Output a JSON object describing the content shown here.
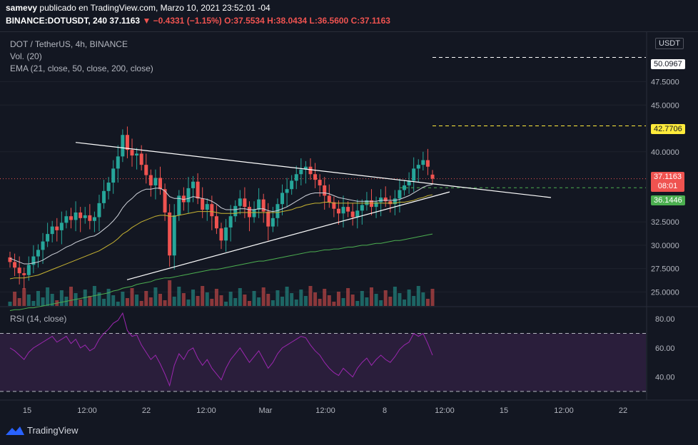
{
  "header": {
    "publisher": "samevy",
    "published_text": "publicado en TradingView.com, Marzo 10, 2021 23:52:01 -04",
    "symbol_line": "BINANCE:DOTUSDT, 240",
    "last": "37.1163",
    "change": "▼ −0.4331 (−1.15%)",
    "open": "O:37.5534",
    "high": "H:38.0434",
    "low": "L:36.5600",
    "close": "C:37.1163"
  },
  "legend": {
    "title": "DOT / TetherUS, 4h, BINANCE",
    "volume": "Vol. (20)",
    "ema": "EMA (21, close, 50, close, 200, close)",
    "rsi": "RSI (14, close)"
  },
  "currency_button": "USDT",
  "price_tags": {
    "line_upper": "50.0967",
    "line_mid": "42.7706",
    "last_price": "37.1163",
    "countdown": "08:01",
    "support": "36.1446"
  },
  "footer": {
    "brand": "TradingView"
  },
  "colors": {
    "up": "#26a69a",
    "down": "#ef5350",
    "ema21": "#d1d4dc",
    "ema50": "#c8b432",
    "ema200": "#4caf50",
    "rsi": "#9c27b0",
    "rsi_band": "#2a1e3b"
  },
  "chart_data": [
    {
      "type": "candlestick",
      "title": "DOT / TetherUS, 4h, BINANCE",
      "y_axis_ticks": [
        "50.0967",
        "47.5000",
        "45.0000",
        "42.7706",
        "40.0000",
        "37.1163",
        "36.1446",
        "32.5000",
        "30.0000",
        "27.5000",
        "25.0000"
      ],
      "ylim": [
        23.5,
        52.5
      ],
      "x_axis_ticks": [
        "15",
        "12:00",
        "22",
        "12:00",
        "Mar",
        "12:00",
        "8",
        "12:00",
        "15",
        "12:00",
        "22"
      ],
      "ohlc_last": {
        "open": 37.5534,
        "high": 38.0434,
        "low": 36.56,
        "close": 37.1163
      },
      "closes": [
        28.2,
        27.6,
        27.0,
        26.8,
        27.9,
        28.8,
        29.5,
        30.4,
        31.2,
        32.0,
        31.6,
        32.4,
        33.1,
        32.7,
        33.5,
        32.9,
        33.2,
        32.6,
        33.0,
        34.5,
        35.8,
        36.7,
        38.2,
        39.5,
        41.8,
        40.2,
        39.6,
        39.8,
        38.6,
        37.5,
        36.4,
        37.2,
        36.0,
        33.5,
        28.9,
        33.2,
        35.3,
        34.6,
        36.1,
        36.8,
        35.0,
        33.8,
        34.4,
        33.1,
        31.8,
        30.5,
        31.9,
        33.1,
        34.2,
        35.0,
        34.1,
        33.0,
        33.8,
        34.9,
        33.6,
        32.0,
        32.9,
        34.4,
        35.6,
        36.0,
        36.9,
        37.6,
        38.1,
        38.4,
        37.6,
        37.0,
        36.4,
        35.3,
        34.6,
        33.9,
        33.4,
        34.1,
        33.6,
        33.0,
        33.7,
        34.3,
        34.8,
        34.1,
        34.6,
        35.1,
        34.7,
        34.4,
        35.0,
        35.9,
        36.4,
        36.9,
        38.2,
        38.6,
        39.1,
        38.4,
        37.1163
      ],
      "series": [
        {
          "name": "EMA 21",
          "values": [
            28.6,
            28.4,
            28.2,
            28.0,
            28.0,
            28.1,
            28.2,
            28.4,
            28.7,
            29.0,
            29.2,
            29.5,
            29.8,
            30.0,
            30.3,
            30.5,
            30.7,
            30.9,
            31.0,
            31.3,
            31.7,
            32.1,
            32.6,
            33.2,
            34.0,
            34.6,
            35.0,
            35.5,
            35.8,
            36.0,
            36.0,
            36.1,
            36.1,
            35.8,
            35.2,
            35.0,
            35.0,
            34.9,
            35.0,
            35.2,
            35.1,
            35.0,
            34.9,
            34.7,
            34.4,
            34.0,
            33.8,
            33.8,
            33.8,
            33.9,
            33.9,
            33.8,
            33.8,
            33.9,
            33.9,
            33.7,
            33.6,
            33.7,
            33.9,
            34.1,
            34.4,
            34.7,
            35.0,
            35.3,
            35.5,
            35.6,
            35.6,
            35.6,
            35.5,
            35.3,
            35.1,
            35.0,
            34.9,
            34.8,
            34.7,
            34.7,
            34.7,
            34.7,
            34.7,
            34.8,
            34.8,
            34.8,
            34.8,
            34.9,
            35.1,
            35.3,
            35.6,
            35.9,
            36.2,
            36.4,
            36.5
          ]
        },
        {
          "name": "EMA 50",
          "values": [
            26.4,
            26.5,
            26.5,
            26.5,
            26.6,
            26.7,
            26.8,
            27.0,
            27.2,
            27.4,
            27.6,
            27.8,
            28.0,
            28.2,
            28.4,
            28.6,
            28.8,
            29.0,
            29.2,
            29.4,
            29.7,
            30.0,
            30.3,
            30.7,
            31.2,
            31.5,
            31.9,
            32.2,
            32.5,
            32.7,
            32.9,
            33.1,
            33.2,
            33.2,
            33.1,
            33.1,
            33.2,
            33.3,
            33.4,
            33.5,
            33.6,
            33.6,
            33.6,
            33.6,
            33.5,
            33.4,
            33.4,
            33.4,
            33.4,
            33.5,
            33.5,
            33.5,
            33.5,
            33.5,
            33.5,
            33.5,
            33.5,
            33.5,
            33.6,
            33.7,
            33.8,
            34.0,
            34.1,
            34.3,
            34.4,
            34.5,
            34.5,
            34.6,
            34.6,
            34.5,
            34.5,
            34.5,
            34.5,
            34.5,
            34.5,
            34.5,
            34.5,
            34.5,
            34.5,
            34.5,
            34.5,
            34.5,
            34.5,
            34.6,
            34.6,
            34.7,
            34.8,
            35.0,
            35.1,
            35.3,
            35.4
          ]
        },
        {
          "name": "EMA 200",
          "values": [
            23.0,
            23.1,
            23.1,
            23.2,
            23.3,
            23.3,
            23.4,
            23.5,
            23.6,
            23.7,
            23.8,
            23.9,
            24.0,
            24.1,
            24.2,
            24.3,
            24.4,
            24.5,
            24.6,
            24.7,
            24.8,
            24.9,
            25.1,
            25.2,
            25.4,
            25.5,
            25.6,
            25.8,
            25.9,
            26.0,
            26.1,
            26.3,
            26.4,
            26.5,
            26.5,
            26.6,
            26.7,
            26.8,
            26.9,
            27.0,
            27.1,
            27.2,
            27.3,
            27.4,
            27.4,
            27.5,
            27.6,
            27.7,
            27.8,
            27.9,
            28.0,
            28.1,
            28.2,
            28.3,
            28.3,
            28.4,
            28.5,
            28.6,
            28.7,
            28.8,
            28.9,
            29.0,
            29.1,
            29.2,
            29.3,
            29.3,
            29.4,
            29.5,
            29.5,
            29.6,
            29.6,
            29.7,
            29.8,
            29.8,
            29.9,
            30.0,
            30.0,
            30.1,
            30.2,
            30.2,
            30.3,
            30.4,
            30.5,
            30.5,
            30.6,
            30.7,
            30.8,
            30.9,
            31.0,
            31.1,
            31.2
          ]
        }
      ]
    },
    {
      "type": "line",
      "title": "RSI (14, close)",
      "y_axis_ticks": [
        "80.00",
        "60.00",
        "40.00"
      ],
      "ylim": [
        27,
        86
      ],
      "band": [
        30,
        70
      ],
      "series": [
        {
          "name": "RSI",
          "values": [
            60,
            58,
            55,
            52,
            57,
            60,
            62,
            64,
            66,
            68,
            64,
            66,
            68,
            63,
            66,
            60,
            62,
            58,
            60,
            66,
            70,
            73,
            77,
            79,
            84,
            72,
            68,
            69,
            62,
            57,
            52,
            55,
            49,
            42,
            34,
            48,
            56,
            52,
            58,
            60,
            53,
            48,
            52,
            46,
            42,
            38,
            46,
            52,
            56,
            60,
            55,
            50,
            54,
            58,
            52,
            46,
            50,
            56,
            60,
            62,
            64,
            66,
            68,
            67,
            62,
            58,
            55,
            50,
            46,
            43,
            41,
            46,
            43,
            40,
            46,
            50,
            53,
            48,
            52,
            55,
            52,
            50,
            54,
            59,
            62,
            64,
            70,
            68,
            70,
            63,
            55
          ]
        }
      ]
    }
  ]
}
